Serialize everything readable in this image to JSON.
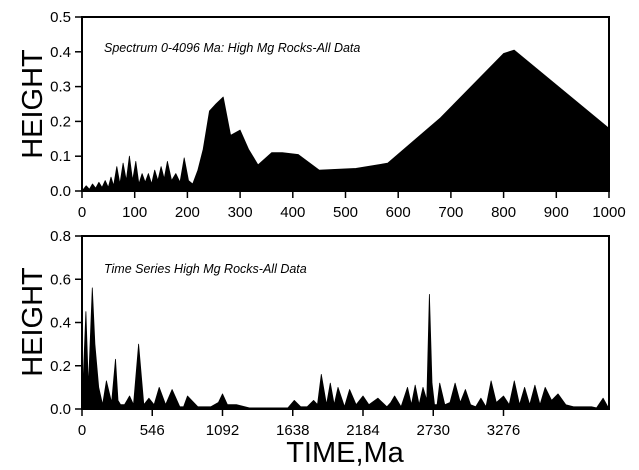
{
  "chart_data": [
    {
      "type": "area",
      "title": "Spectrum 0-4096 Ma: High Mg Rocks-All Data",
      "xlabel": "",
      "ylabel": "HEIGHT",
      "xlim": [
        0,
        1000
      ],
      "ylim": [
        0,
        0.5
      ],
      "x_ticks": [
        "0",
        "100",
        "200",
        "300",
        "400",
        "500",
        "600",
        "700",
        "800",
        "900",
        "1000"
      ],
      "y_ticks": [
        "0.0",
        "0.1",
        "0.2",
        "0.3",
        "0.4",
        "0.5"
      ],
      "grid": false,
      "x": [
        0,
        8,
        14,
        20,
        26,
        32,
        38,
        44,
        50,
        55,
        60,
        66,
        72,
        78,
        84,
        90,
        96,
        102,
        108,
        114,
        120,
        126,
        132,
        138,
        144,
        150,
        156,
        162,
        170,
        178,
        186,
        194,
        202,
        210,
        220,
        230,
        242,
        254,
        268,
        282,
        300,
        316,
        334,
        360,
        380,
        410,
        450,
        520,
        580,
        680,
        800,
        820,
        1000
      ],
      "y": [
        0.0,
        0.015,
        0.005,
        0.02,
        0.008,
        0.025,
        0.01,
        0.03,
        0.01,
        0.04,
        0.015,
        0.07,
        0.02,
        0.08,
        0.03,
        0.1,
        0.03,
        0.085,
        0.02,
        0.05,
        0.025,
        0.05,
        0.02,
        0.06,
        0.03,
        0.07,
        0.035,
        0.085,
        0.03,
        0.05,
        0.025,
        0.095,
        0.03,
        0.02,
        0.06,
        0.12,
        0.23,
        0.25,
        0.27,
        0.16,
        0.175,
        0.12,
        0.075,
        0.11,
        0.11,
        0.105,
        0.06,
        0.065,
        0.08,
        0.21,
        0.395,
        0.405,
        0.18
      ]
    },
    {
      "type": "area",
      "title": "Time Series High Mg Rocks-All Data",
      "xlabel": "TIME,Ma",
      "ylabel": "HEIGHT",
      "xlim": [
        0,
        4096
      ],
      "ylim": [
        0,
        0.8
      ],
      "x_ticks": [
        "0",
        "546",
        "1092",
        "1638",
        "2184",
        "2730",
        "3276"
      ],
      "y_ticks": [
        "0.0",
        "0.2",
        "0.4",
        "0.6",
        "0.8"
      ],
      "grid": false,
      "x": [
        0,
        30,
        50,
        80,
        100,
        130,
        160,
        190,
        230,
        260,
        280,
        300,
        330,
        370,
        400,
        440,
        480,
        520,
        560,
        600,
        650,
        700,
        760,
        790,
        820,
        900,
        1000,
        1060,
        1092,
        1130,
        1200,
        1300,
        1400,
        1500,
        1600,
        1650,
        1700,
        1750,
        1800,
        1830,
        1860,
        1900,
        1930,
        1960,
        1990,
        2040,
        2080,
        2130,
        2184,
        2230,
        2300,
        2370,
        2400,
        2430,
        2480,
        2530,
        2560,
        2590,
        2620,
        2650,
        2680,
        2700,
        2720,
        2740,
        2760,
        2780,
        2820,
        2860,
        2900,
        2940,
        2980,
        3020,
        3060,
        3100,
        3140,
        3180,
        3220,
        3276,
        3320,
        3360,
        3400,
        3440,
        3480,
        3520,
        3560,
        3600,
        3650,
        3700,
        3760,
        3820,
        3880,
        3930,
        3960,
        4000,
        4050,
        4096
      ],
      "y": [
        0.0,
        0.45,
        0.1,
        0.56,
        0.3,
        0.1,
        0.02,
        0.13,
        0.03,
        0.23,
        0.04,
        0.02,
        0.02,
        0.06,
        0.02,
        0.3,
        0.02,
        0.05,
        0.02,
        0.1,
        0.02,
        0.09,
        0.01,
        0.01,
        0.06,
        0.01,
        0.01,
        0.03,
        0.07,
        0.02,
        0.02,
        0.005,
        0.005,
        0.005,
        0.005,
        0.04,
        0.01,
        0.01,
        0.04,
        0.02,
        0.16,
        0.02,
        0.12,
        0.02,
        0.1,
        0.01,
        0.09,
        0.02,
        0.06,
        0.02,
        0.05,
        0.01,
        0.03,
        0.06,
        0.01,
        0.1,
        0.02,
        0.11,
        0.02,
        0.1,
        0.04,
        0.53,
        0.12,
        0.02,
        0.02,
        0.12,
        0.02,
        0.03,
        0.12,
        0.03,
        0.09,
        0.02,
        0.01,
        0.05,
        0.01,
        0.13,
        0.03,
        0.06,
        0.02,
        0.13,
        0.02,
        0.1,
        0.02,
        0.11,
        0.02,
        0.1,
        0.04,
        0.07,
        0.02,
        0.01,
        0.01,
        0.01,
        0.01,
        0.005,
        0.05,
        0.0
      ]
    }
  ]
}
